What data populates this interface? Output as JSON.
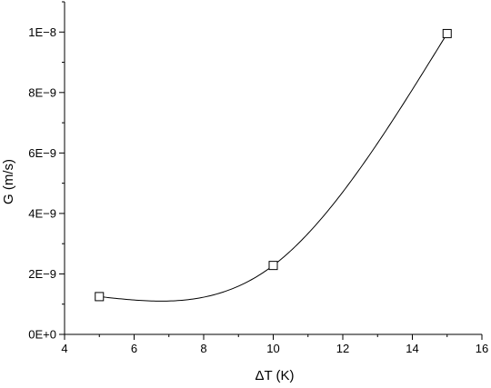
{
  "chart_data": {
    "type": "line",
    "xlabel": "ΔT (K)",
    "ylabel": "G (m/s)",
    "xlim": [
      4,
      16
    ],
    "ylim": [
      0,
      1.1e-08
    ],
    "x_ticks": [
      4,
      6,
      8,
      10,
      12,
      14,
      16
    ],
    "x_tick_labels": [
      "4",
      "6",
      "8",
      "10",
      "12",
      "14",
      "16"
    ],
    "y_ticks": [
      0,
      2e-09,
      4e-09,
      6e-09,
      8e-09,
      1e-08
    ],
    "y_tick_labels": [
      "0E+0",
      "2E−9",
      "4E−9",
      "6E−9",
      "8E−9",
      "1E−8"
    ],
    "grid": false,
    "series": [
      {
        "marker": "open-square",
        "line": "smooth",
        "x": [
          5,
          10,
          15
        ],
        "y": [
          1.25e-09,
          2.28e-09,
          9.95e-09
        ]
      }
    ]
  }
}
